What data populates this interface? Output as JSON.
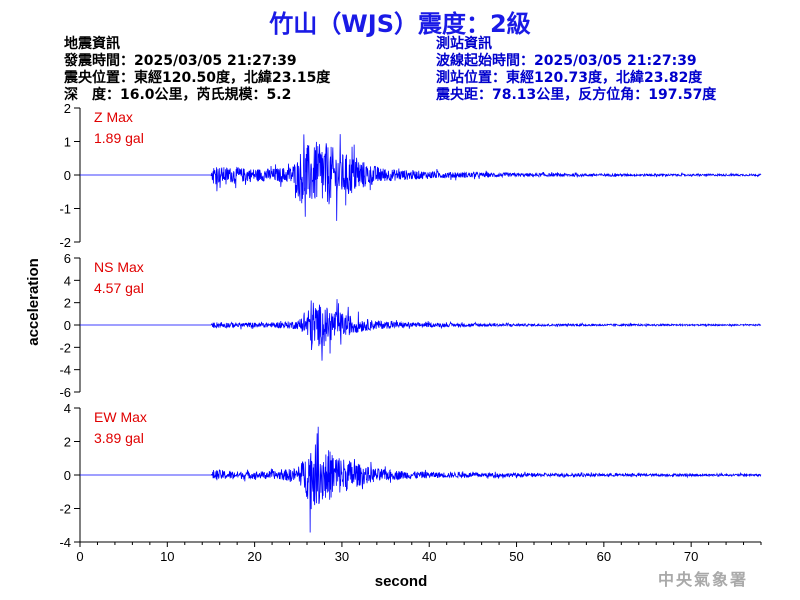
{
  "header": {
    "title": "竹山（WJS）震度：2級"
  },
  "quake_info": {
    "heading": "地震資訊",
    "origin_time": "發震時間：2025/03/05 21:27:39",
    "epicenter": "震央位置：東經120.50度，北緯23.15度",
    "depth_magnitude": "深　度：16.0公里，芮氏規模：5.2"
  },
  "station_info": {
    "heading": "測站資訊",
    "wave_start": "波線起始時間：2025/03/05 21:27:39",
    "station_location": "測站位置：東經120.73度，北緯23.82度",
    "distance_azimuth": "震央距：78.13公里，反方位角：197.57度"
  },
  "watermark": "中央氣象署",
  "colors": {
    "title": "#1a1ae6",
    "trace": "#0000ff",
    "max_label": "#e00000",
    "station_text": "#0000cc"
  },
  "chart_data": {
    "type": "line",
    "xlabel": "second",
    "ylabel": "acceleration",
    "xlim": [
      0,
      78
    ],
    "xticks": [
      0,
      10,
      20,
      30,
      40,
      50,
      60,
      70
    ],
    "grid": false,
    "panels": [
      {
        "component": "Z",
        "max_label": "Z Max",
        "max_value": "1.89 gal",
        "ylim": [
          -2,
          2
        ],
        "yticks": [
          2,
          1,
          0,
          -1,
          -2
        ],
        "envelope": {
          "x": [
            0,
            15.0,
            15.3,
            16,
            18,
            20,
            22,
            24,
            25,
            25.5,
            26,
            27,
            28,
            29,
            30,
            31,
            32,
            33,
            35,
            38,
            42,
            50,
            60,
            70,
            78
          ],
          "amp": [
            0,
            0,
            0.55,
            0.45,
            0.4,
            0.35,
            0.35,
            0.45,
            0.9,
            1.75,
            1.7,
            1.5,
            1.8,
            1.5,
            1.2,
            1.1,
            0.9,
            0.6,
            0.35,
            0.25,
            0.17,
            0.1,
            0.07,
            0.05,
            0.05
          ]
        }
      },
      {
        "component": "NS",
        "max_label": "NS Max",
        "max_value": "4.57 gal",
        "ylim": [
          -6,
          6
        ],
        "yticks": [
          6,
          4,
          2,
          0,
          -2,
          -4,
          -6
        ],
        "envelope": {
          "x": [
            0,
            15.0,
            15.3,
            18,
            22,
            25,
            25.8,
            26.5,
            27,
            28,
            29,
            30,
            31,
            32,
            33,
            35,
            38,
            42,
            50,
            60,
            70,
            78
          ],
          "amp": [
            0,
            0,
            0.5,
            0.4,
            0.4,
            0.7,
            1.5,
            4.4,
            3.8,
            3.0,
            2.6,
            2.0,
            1.6,
            1.2,
            0.9,
            0.6,
            0.4,
            0.3,
            0.2,
            0.15,
            0.12,
            0.1
          ]
        }
      },
      {
        "component": "EW",
        "max_label": "EW Max",
        "max_value": "3.89 gal",
        "ylim": [
          -4,
          4
        ],
        "yticks": [
          4,
          2,
          0,
          -2,
          -4
        ],
        "envelope": {
          "x": [
            0,
            15.0,
            15.3,
            18,
            22,
            25,
            25.8,
            26.5,
            27,
            28,
            29,
            30,
            31,
            32,
            33,
            35,
            38,
            42,
            50,
            60,
            70,
            78
          ],
          "amp": [
            0,
            0,
            0.6,
            0.4,
            0.4,
            0.8,
            2.0,
            3.8,
            3.3,
            3.0,
            2.6,
            2.0,
            1.6,
            1.2,
            0.9,
            0.6,
            0.4,
            0.3,
            0.2,
            0.15,
            0.12,
            0.1
          ]
        }
      }
    ]
  }
}
